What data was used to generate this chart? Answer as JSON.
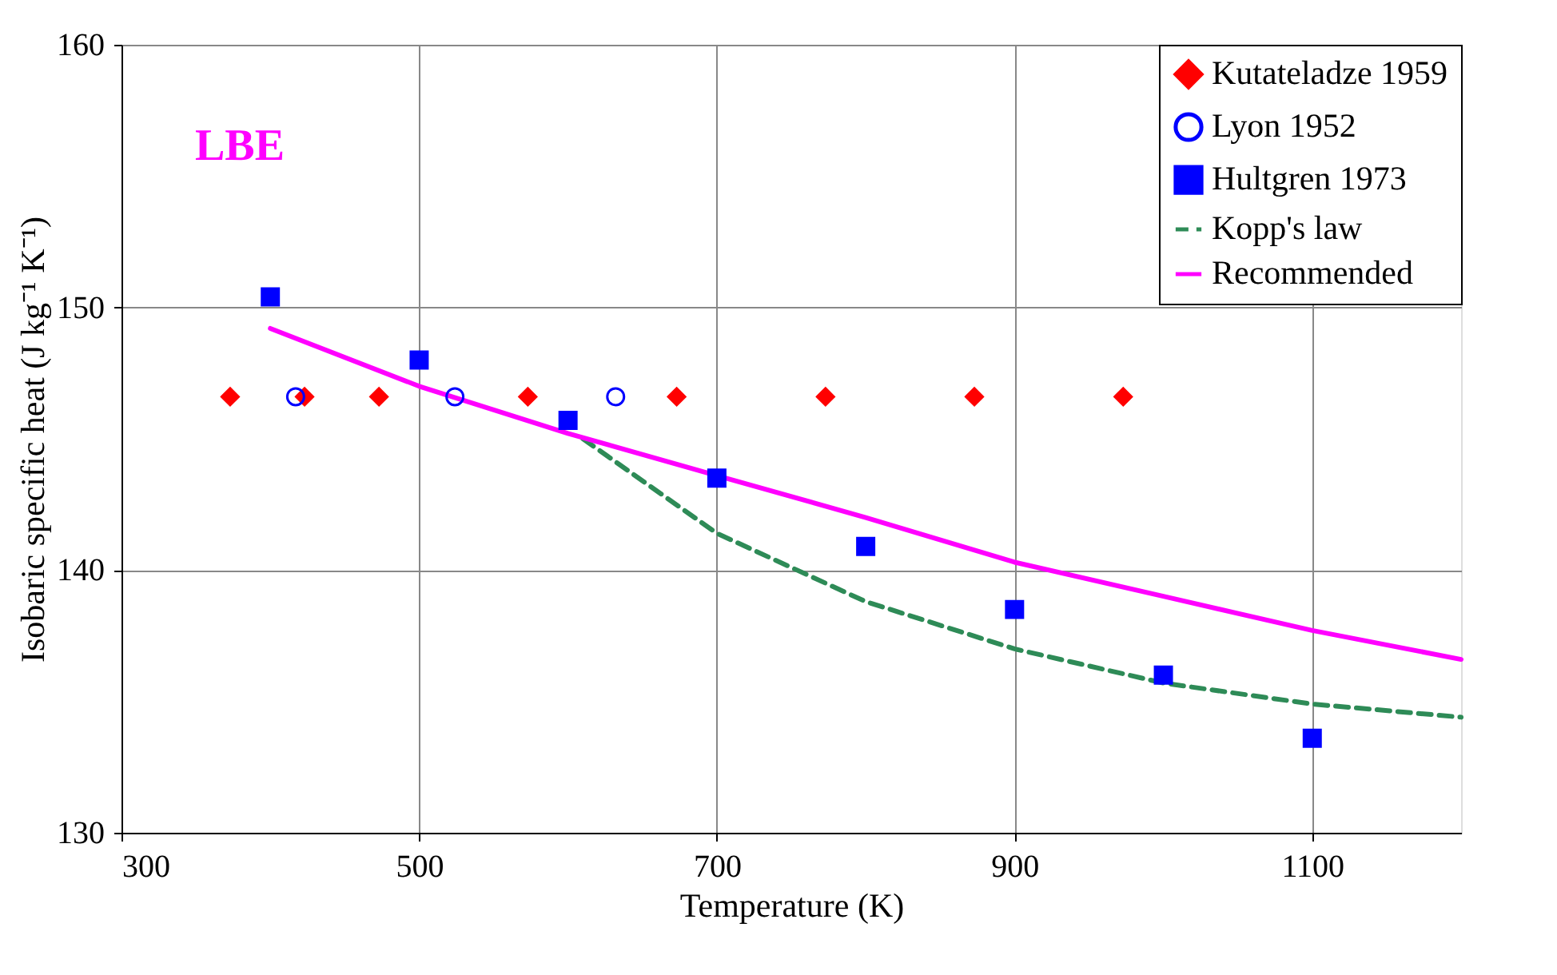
{
  "chart_data": {
    "type": "scatter",
    "xlabel": "Temperature (K)",
    "ylabel": "Isobaric specific heat (J kg⁻¹ K⁻¹)",
    "annotations": [
      "LBE"
    ],
    "xlim": [
      300,
      1200
    ],
    "xticks": [
      300,
      500,
      700,
      900,
      1100
    ],
    "ylim": [
      130,
      160
    ],
    "yticks": [
      130,
      140,
      150,
      160
    ],
    "grid": true,
    "legend": "top right",
    "series": [
      {
        "name": "Kutateladze 1959",
        "marker": "diamond",
        "color": "#ff0000",
        "x": [
          373,
          423,
          473,
          573,
          673,
          773,
          873,
          973
        ],
        "values": [
          146.6,
          146.6,
          146.6,
          146.6,
          146.6,
          146.6,
          146.6,
          146.6
        ]
      },
      {
        "name": "Lyon 1952",
        "marker": "circle",
        "color": "#0000ff",
        "x": [
          417,
          524,
          632
        ],
        "values": [
          146.6,
          146.6,
          146.6
        ]
      },
      {
        "name": "Hultgren 1973",
        "marker": "square",
        "color": "#0000ff",
        "x": [
          400,
          500,
          600,
          700,
          800,
          900,
          1000,
          1100
        ],
        "values": [
          150.4,
          148.0,
          145.7,
          143.5,
          140.9,
          138.5,
          136.0,
          133.6
        ]
      },
      {
        "name": "Kopp's law",
        "type": "line",
        "line_style": "dashed",
        "color": "#2e8b57",
        "x": [
          610,
          700,
          800,
          900,
          1000,
          1100,
          1200
        ],
        "values": [
          145.0,
          141.4,
          138.8,
          137.0,
          135.7,
          134.9,
          134.4
        ]
      },
      {
        "name": "Recommended",
        "type": "line",
        "line_style": "solid",
        "color": "#ff00ff",
        "x": [
          400,
          500,
          600,
          700,
          800,
          900,
          1000,
          1100,
          1200
        ],
        "values": [
          149.2,
          147.0,
          145.2,
          143.6,
          142.0,
          140.3,
          139.0,
          137.7,
          136.6
        ]
      }
    ]
  }
}
